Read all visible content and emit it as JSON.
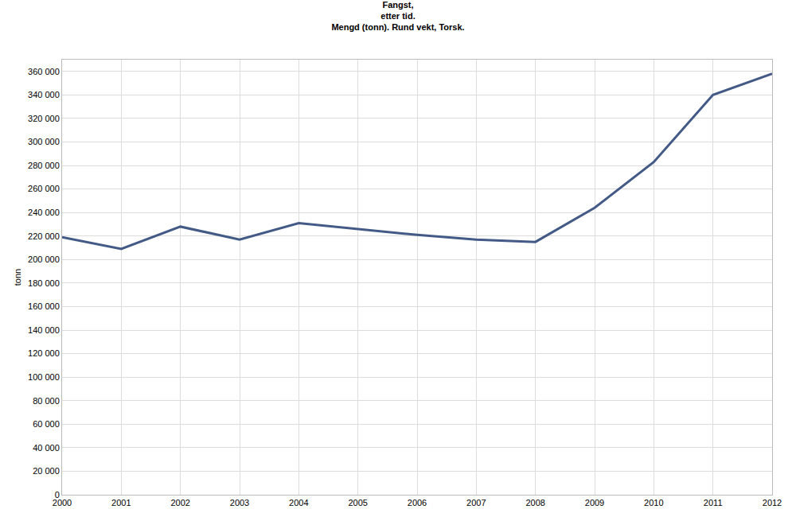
{
  "chart_data": {
    "type": "line",
    "title": "Fangst,\netter tid.\nMengd (tonn). Rund vekt, Torsk.",
    "y_label": "tonn",
    "x": [
      2000,
      2001,
      2002,
      2003,
      2004,
      2005,
      2006,
      2007,
      2008,
      2009,
      2010,
      2011,
      2012
    ],
    "series": [
      {
        "name": "Torsk",
        "color": "#435a86",
        "values": [
          219000,
          209000,
          228000,
          217000,
          231000,
          226000,
          221000,
          217000,
          215000,
          244000,
          283000,
          340000,
          358000
        ]
      }
    ],
    "xlim": [
      2000,
      2012
    ],
    "xticks": [
      2000,
      2001,
      2002,
      2003,
      2004,
      2005,
      2006,
      2007,
      2008,
      2009,
      2010,
      2011,
      2012
    ],
    "ylim": [
      0,
      370000
    ],
    "yticks": [
      0,
      {
        "value": 20000,
        "label": "20 000"
      },
      {
        "value": 40000,
        "label": "40 000"
      },
      {
        "value": 60000,
        "label": "60 000"
      },
      {
        "value": 80000,
        "label": "80 000"
      },
      {
        "value": 100000,
        "label": "100 000"
      },
      {
        "value": 120000,
        "label": "120 000"
      },
      {
        "value": 140000,
        "label": "140 000"
      },
      {
        "value": 160000,
        "label": "160 000"
      },
      {
        "value": 180000,
        "label": "180 000"
      },
      {
        "value": 200000,
        "label": "200 000"
      },
      {
        "value": 220000,
        "label": "220 000"
      },
      {
        "value": 240000,
        "label": "240 000"
      },
      {
        "value": 260000,
        "label": "260 000"
      },
      {
        "value": 280000,
        "label": "280 000"
      },
      {
        "value": 300000,
        "label": "300 000"
      },
      {
        "value": 320000,
        "label": "320 000"
      },
      {
        "value": 340000,
        "label": "340 000"
      },
      {
        "value": 360000,
        "label": "360 000"
      }
    ],
    "grid": true
  }
}
